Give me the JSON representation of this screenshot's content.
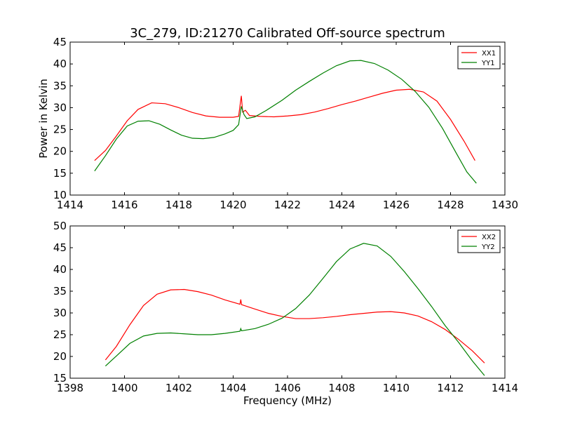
{
  "figure": {
    "title": "3C_279, ID:21270 Calibrated Off-source spectrum"
  },
  "colors": {
    "red": "#ff0000",
    "green": "#008000",
    "axes": "#000000",
    "background": "#ffffff"
  },
  "chart_data": [
    {
      "type": "line",
      "title": "3C_279, ID:21270 Calibrated Off-source spectrum",
      "xlabel": "",
      "ylabel": "Power in Kelvin",
      "xlim": [
        1414,
        1430
      ],
      "ylim": [
        10,
        45
      ],
      "xticks": [
        1414,
        1416,
        1418,
        1420,
        1422,
        1424,
        1426,
        1428,
        1430
      ],
      "yticks": [
        10,
        15,
        20,
        25,
        30,
        35,
        40,
        45
      ],
      "grid": false,
      "legend": "top-right",
      "series": [
        {
          "name": "XX1",
          "color": "#ff0000",
          "points": [
            [
              1414.9,
              17.9
            ],
            [
              1415.3,
              20.2
            ],
            [
              1415.7,
              23.5
            ],
            [
              1416.1,
              27.0
            ],
            [
              1416.5,
              29.6
            ],
            [
              1417.0,
              31.1
            ],
            [
              1417.5,
              30.9
            ],
            [
              1418.0,
              30.0
            ],
            [
              1418.5,
              28.9
            ],
            [
              1419.0,
              28.1
            ],
            [
              1419.5,
              27.8
            ],
            [
              1420.0,
              27.8
            ],
            [
              1420.2,
              28.0
            ],
            [
              1420.3,
              32.7
            ],
            [
              1420.35,
              29.0
            ],
            [
              1420.45,
              29.4
            ],
            [
              1420.6,
              28.2
            ],
            [
              1421.0,
              28.0
            ],
            [
              1421.5,
              27.9
            ],
            [
              1422.0,
              28.1
            ],
            [
              1422.5,
              28.4
            ],
            [
              1423.0,
              29.0
            ],
            [
              1423.5,
              29.8
            ],
            [
              1424.0,
              30.7
            ],
            [
              1424.5,
              31.5
            ],
            [
              1425.0,
              32.4
            ],
            [
              1425.5,
              33.3
            ],
            [
              1426.0,
              34.0
            ],
            [
              1426.5,
              34.2
            ],
            [
              1427.0,
              33.6
            ],
            [
              1427.5,
              31.5
            ],
            [
              1428.0,
              27.3
            ],
            [
              1428.5,
              22.3
            ],
            [
              1428.9,
              17.9
            ]
          ]
        },
        {
          "name": "YY1",
          "color": "#008000",
          "points": [
            [
              1414.9,
              15.5
            ],
            [
              1415.3,
              19.0
            ],
            [
              1415.7,
              22.8
            ],
            [
              1416.1,
              25.8
            ],
            [
              1416.5,
              26.9
            ],
            [
              1416.9,
              27.0
            ],
            [
              1417.3,
              26.2
            ],
            [
              1417.7,
              24.9
            ],
            [
              1418.1,
              23.7
            ],
            [
              1418.5,
              23.0
            ],
            [
              1418.9,
              22.9
            ],
            [
              1419.3,
              23.2
            ],
            [
              1419.7,
              24.0
            ],
            [
              1420.0,
              24.8
            ],
            [
              1420.2,
              26.1
            ],
            [
              1420.3,
              30.3
            ],
            [
              1420.4,
              28.4
            ],
            [
              1420.5,
              27.5
            ],
            [
              1420.8,
              27.9
            ],
            [
              1421.2,
              29.3
            ],
            [
              1421.8,
              31.7
            ],
            [
              1422.3,
              34.0
            ],
            [
              1422.8,
              36.0
            ],
            [
              1423.3,
              37.9
            ],
            [
              1423.8,
              39.6
            ],
            [
              1424.3,
              40.7
            ],
            [
              1424.7,
              40.8
            ],
            [
              1425.2,
              40.1
            ],
            [
              1425.7,
              38.6
            ],
            [
              1426.2,
              36.5
            ],
            [
              1426.7,
              33.7
            ],
            [
              1427.2,
              30.1
            ],
            [
              1427.7,
              25.3
            ],
            [
              1428.2,
              19.7
            ],
            [
              1428.6,
              15.3
            ],
            [
              1428.95,
              12.7
            ]
          ]
        }
      ]
    },
    {
      "type": "line",
      "title": "",
      "xlabel": "Frequency (MHz)",
      "ylabel": "",
      "xlim": [
        1398,
        1414
      ],
      "ylim": [
        15,
        50
      ],
      "xticks": [
        1398,
        1400,
        1402,
        1404,
        1406,
        1408,
        1410,
        1412,
        1414
      ],
      "yticks": [
        15,
        20,
        25,
        30,
        35,
        40,
        45,
        50
      ],
      "grid": false,
      "legend": "top-right",
      "series": [
        {
          "name": "XX2",
          "color": "#ff0000",
          "points": [
            [
              1399.3,
              19.2
            ],
            [
              1399.7,
              22.3
            ],
            [
              1400.2,
              27.3
            ],
            [
              1400.7,
              31.7
            ],
            [
              1401.2,
              34.3
            ],
            [
              1401.7,
              35.3
            ],
            [
              1402.2,
              35.4
            ],
            [
              1402.7,
              34.9
            ],
            [
              1403.2,
              34.1
            ],
            [
              1403.7,
              33.0
            ],
            [
              1404.25,
              32.0
            ],
            [
              1404.28,
              33.1
            ],
            [
              1404.31,
              31.9
            ],
            [
              1404.8,
              30.9
            ],
            [
              1405.3,
              29.9
            ],
            [
              1405.8,
              29.2
            ],
            [
              1406.3,
              28.7
            ],
            [
              1406.8,
              28.7
            ],
            [
              1407.3,
              28.9
            ],
            [
              1407.8,
              29.2
            ],
            [
              1408.3,
              29.6
            ],
            [
              1408.8,
              29.9
            ],
            [
              1409.3,
              30.2
            ],
            [
              1409.8,
              30.3
            ],
            [
              1410.3,
              30.0
            ],
            [
              1410.8,
              29.3
            ],
            [
              1411.3,
              28.0
            ],
            [
              1411.8,
              26.2
            ],
            [
              1412.3,
              23.9
            ],
            [
              1412.8,
              21.3
            ],
            [
              1413.25,
              18.5
            ]
          ]
        },
        {
          "name": "YY2",
          "color": "#008000",
          "points": [
            [
              1399.3,
              17.8
            ],
            [
              1399.7,
              20.1
            ],
            [
              1400.2,
              23.0
            ],
            [
              1400.7,
              24.7
            ],
            [
              1401.2,
              25.3
            ],
            [
              1401.7,
              25.4
            ],
            [
              1402.2,
              25.2
            ],
            [
              1402.7,
              25.0
            ],
            [
              1403.2,
              25.0
            ],
            [
              1403.7,
              25.3
            ],
            [
              1404.25,
              25.8
            ],
            [
              1404.28,
              26.4
            ],
            [
              1404.31,
              25.9
            ],
            [
              1404.8,
              26.4
            ],
            [
              1405.3,
              27.4
            ],
            [
              1405.8,
              28.8
            ],
            [
              1406.3,
              31.0
            ],
            [
              1406.8,
              34.1
            ],
            [
              1407.3,
              37.9
            ],
            [
              1407.8,
              41.8
            ],
            [
              1408.3,
              44.7
            ],
            [
              1408.8,
              46.0
            ],
            [
              1409.3,
              45.4
            ],
            [
              1409.8,
              43.0
            ],
            [
              1410.3,
              39.5
            ],
            [
              1410.8,
              35.6
            ],
            [
              1411.3,
              31.5
            ],
            [
              1411.8,
              27.1
            ],
            [
              1412.3,
              23.2
            ],
            [
              1412.8,
              19.0
            ],
            [
              1413.25,
              15.6
            ]
          ]
        }
      ]
    }
  ]
}
